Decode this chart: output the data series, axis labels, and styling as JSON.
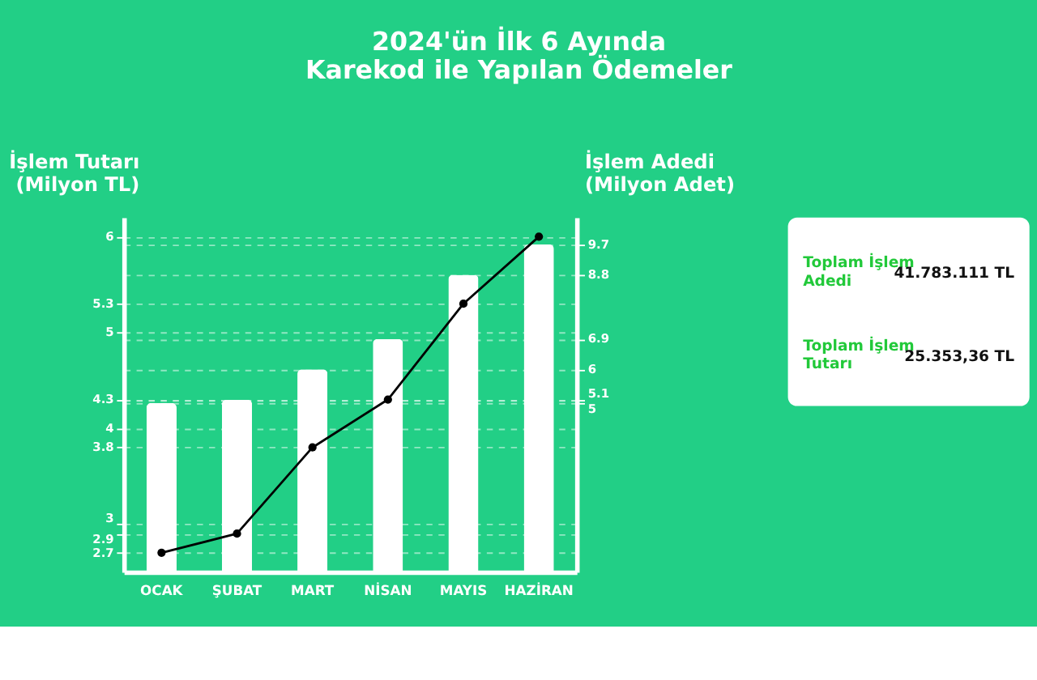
{
  "chart_data": {
    "type": "bar",
    "title": "2024'ün İlk 6 Ayında\nKarekod ile Yapılan Ödemeler",
    "ylabel": "İşlem Tutarı\n(Milyon TL)",
    "y2label": "İşlem Adedi\n(Milyon Adet)",
    "categories": [
      "OCAK",
      "ŞUBAT",
      "MART",
      "NİSAN",
      "MAYIS",
      "HAZİRAN"
    ],
    "series": [
      {
        "axis": "y2",
        "color": "#ffffff",
        "values": [
          5,
          5.1,
          6,
          6.9,
          8.8,
          9.7
        ]
      },
      {
        "type": "line",
        "color": "#000000",
        "values": [
          2.7,
          2.9,
          3.8,
          4.3,
          5.3,
          6
        ]
      }
    ],
    "ylim": [
      2.5,
      6.2
    ],
    "yticks": [
      2.7,
      2.9,
      3,
      3.8,
      4,
      4.3,
      5,
      5.3,
      6
    ],
    "y2lim": [
      0,
      10.5
    ],
    "y2ticks": [
      5,
      5.1,
      6,
      6.9,
      8.8,
      9.7
    ],
    "grid": true,
    "marker": "circle",
    "line_style": "solid",
    "annotations": [
      "Toplam İşlem\nAdedi",
      "41.783.111 TL",
      "Toplam İşlem\nTutarı",
      "25.353,36 TL"
    ]
  }
}
